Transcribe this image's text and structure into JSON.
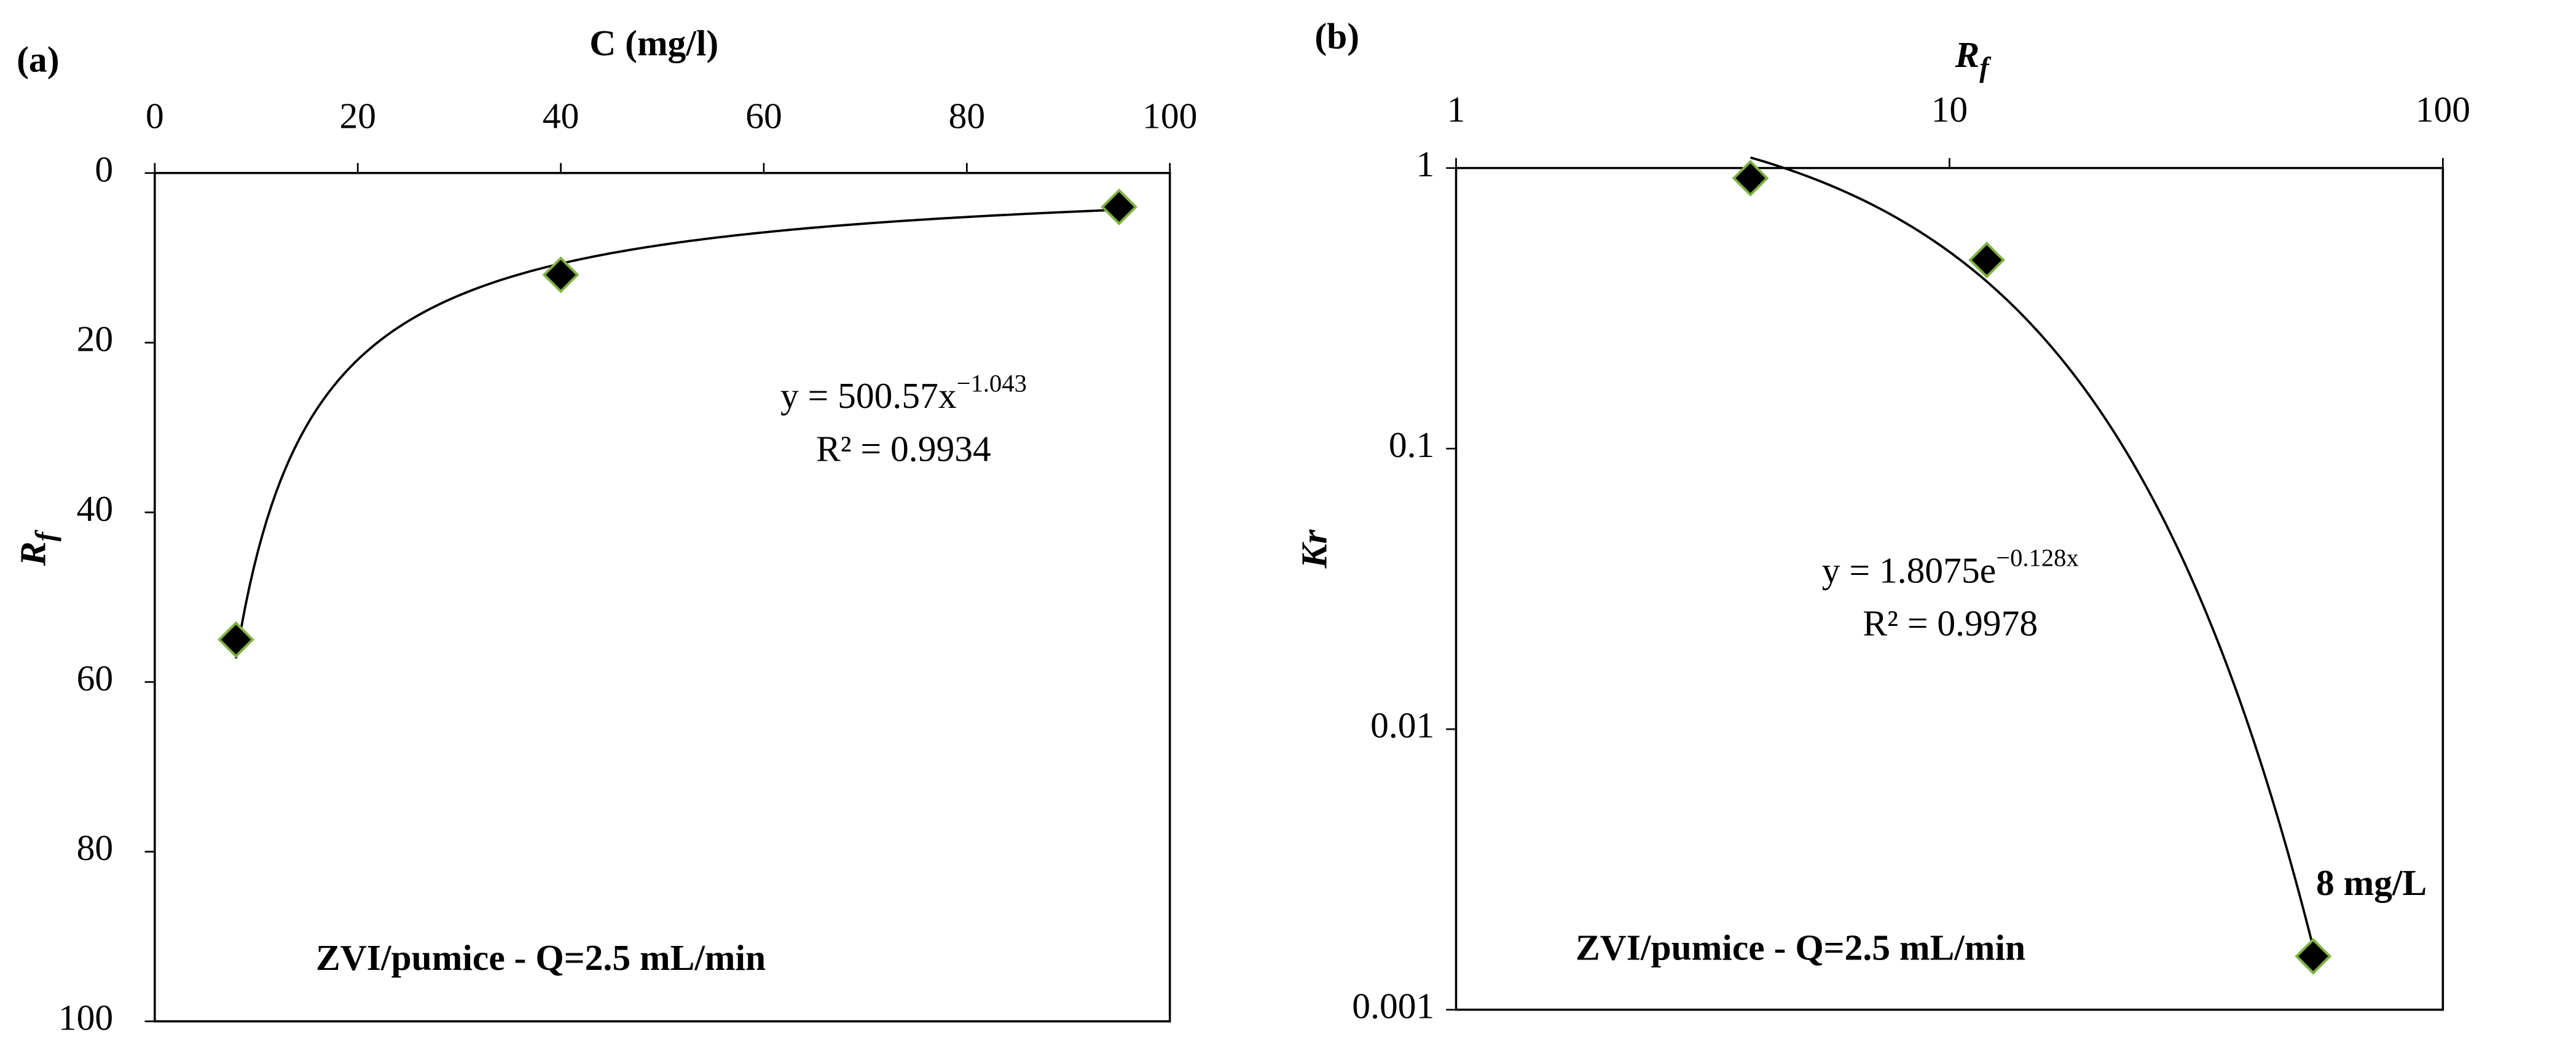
{
  "chart_data": [
    {
      "type": "scatter",
      "panel_label": "(a)",
      "xlabel": {
        "text": "C (mg/l)"
      },
      "ylabel": {
        "text": "R",
        "sub": "f"
      },
      "x": [
        8,
        40,
        95
      ],
      "values": [
        55,
        12,
        4
      ],
      "xlim": [
        0,
        100
      ],
      "xticks": [
        0,
        20,
        40,
        60,
        80,
        100
      ],
      "ylim": [
        0,
        100
      ],
      "yticks": [
        0,
        20,
        40,
        60,
        80,
        100
      ],
      "y_reversed": true,
      "xscale": "linear",
      "yscale": "linear",
      "x_axis_position": "top",
      "marker_color": "#000000",
      "marker_edge": "#7fb241",
      "trendline": {
        "kind": "power",
        "text": "y = 500.57x",
        "exponent": "−1.043",
        "r2": "R² = 0.9934"
      },
      "note": "ZVI/pumice - Q=2.5 mL/min"
    },
    {
      "type": "scatter",
      "panel_label": "(b)",
      "xlabel": {
        "text": "R",
        "sub": "f"
      },
      "ylabel": {
        "text": "Kr"
      },
      "x": [
        3.95,
        11.9,
        54.6
      ],
      "values": [
        0.92,
        0.47,
        0.00155
      ],
      "xlim": [
        1,
        100
      ],
      "xticks": [
        1,
        10,
        100
      ],
      "ylim": [
        0.001,
        1
      ],
      "yticks": [
        0.001,
        0.01,
        0.1,
        1
      ],
      "xscale": "log",
      "yscale": "log",
      "x_axis_position": "top",
      "marker_color": "#000000",
      "marker_edge": "#7fb241",
      "trendline": {
        "kind": "exponential",
        "text": "y = 1.8075e",
        "exponent": "−0.128x",
        "r2": "R² = 0.9978"
      },
      "point_label": {
        "index": 2,
        "text": "8 mg/L"
      },
      "note": "ZVI/pumice - Q=2.5 mL/min"
    }
  ]
}
